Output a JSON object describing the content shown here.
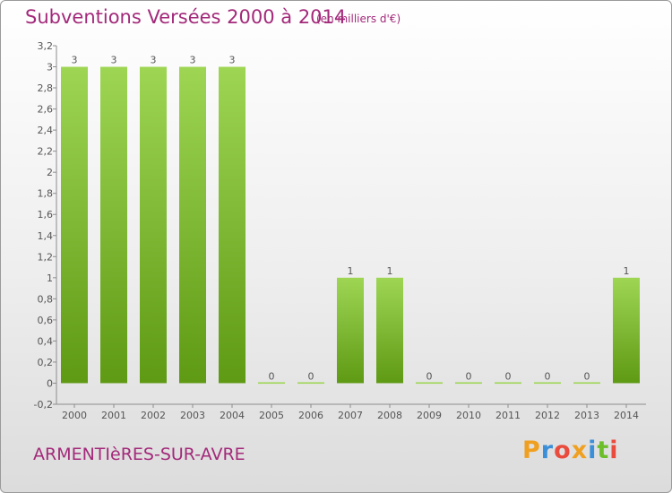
{
  "header": {
    "title": "Subventions Versées 2000 à 2014",
    "subtitle": "(en milliers d'€)"
  },
  "footer": {
    "commune": "ARMENTIèRES-SUR-AVRE",
    "logo_letters": [
      "P",
      "r",
      "o",
      "x",
      "i",
      "t",
      "i"
    ],
    "logo_colors": [
      "#f0a020",
      "#3a8fd8",
      "#e94b3c",
      "#f0a020",
      "#3a8fd8",
      "#6cbf2a",
      "#e94b3c"
    ]
  },
  "chart_data": {
    "type": "bar",
    "categories": [
      "2000",
      "2001",
      "2002",
      "2003",
      "2004",
      "2005",
      "2006",
      "2007",
      "2008",
      "2009",
      "2010",
      "2011",
      "2012",
      "2013",
      "2014"
    ],
    "values": [
      3,
      3,
      3,
      3,
      3,
      0,
      0,
      1,
      1,
      0,
      0,
      0,
      0,
      0,
      1
    ],
    "data_labels": [
      "3",
      "3",
      "3",
      "3",
      "3",
      "0",
      "0",
      "1",
      "1",
      "0",
      "0",
      "0",
      "0",
      "0",
      "1"
    ],
    "yticks": [
      "-0,2",
      "0",
      "0,2",
      "0,4",
      "0,6",
      "0,8",
      "1",
      "1,2",
      "1,4",
      "1,6",
      "1,8",
      "2",
      "2,2",
      "2,4",
      "2,6",
      "2,8",
      "3",
      "3,2"
    ],
    "ylim": [
      -0.2,
      3.2
    ],
    "grid": false,
    "colors": {
      "bar_top": "#9ed654",
      "bar_bottom": "#5f9a14",
      "axis": "#8c8c8c",
      "text": "#555555"
    }
  }
}
